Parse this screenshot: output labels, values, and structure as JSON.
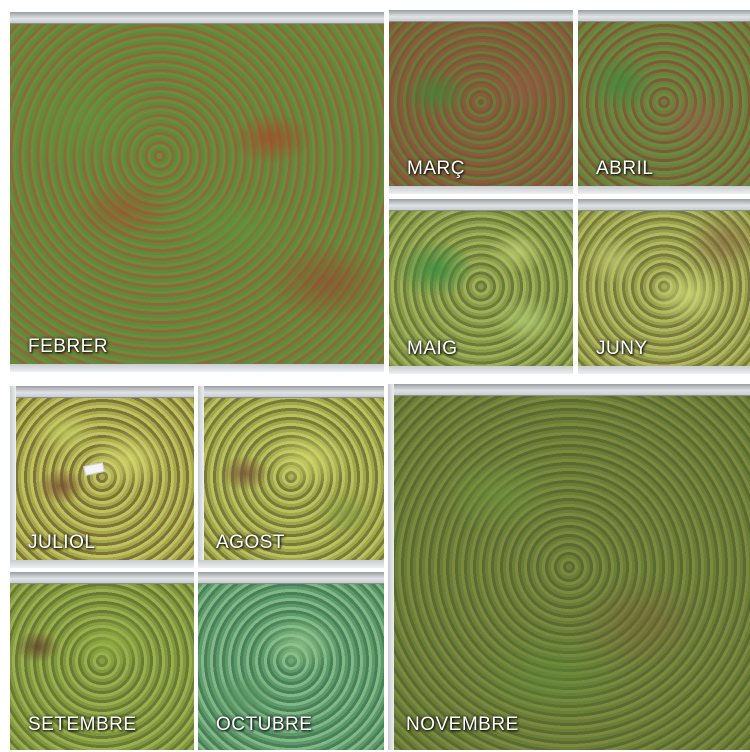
{
  "panels": [
    {
      "id": "febrer",
      "label": "FEBRER"
    },
    {
      "id": "marc",
      "label": "MARÇ"
    },
    {
      "id": "abril",
      "label": "ABRIL"
    },
    {
      "id": "maig",
      "label": "MAIG"
    },
    {
      "id": "juny",
      "label": "JUNY"
    },
    {
      "id": "juliol",
      "label": "JULIOL"
    },
    {
      "id": "agost",
      "label": "AGOST"
    },
    {
      "id": "setembre",
      "label": "SETEMBRE"
    },
    {
      "id": "octubre",
      "label": "OCTUBRE"
    },
    {
      "id": "novembre",
      "label": "NOVEMBRE"
    }
  ]
}
